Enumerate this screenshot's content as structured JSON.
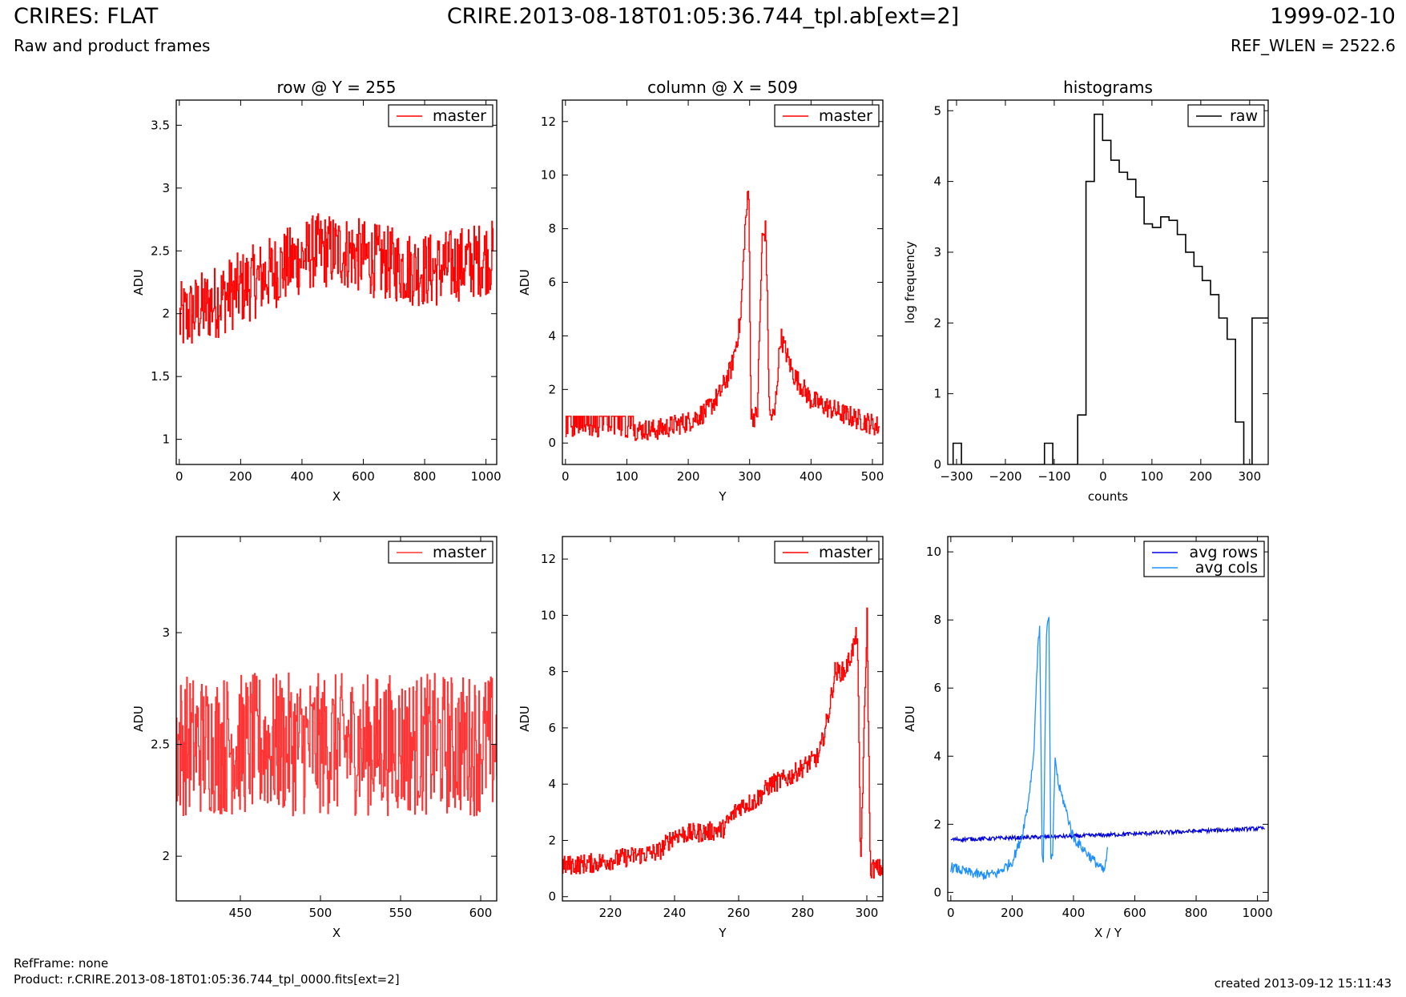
{
  "header": {
    "title": "CRIRES: FLAT",
    "subtitle": "Raw and product frames",
    "center": "CRIRE.2013-08-18T01:05:36.744_tpl.ab[ext=2]",
    "date": "1999-02-10",
    "ref_wlen": "REF_WLEN = 2522.6"
  },
  "footer": {
    "refframe": "RefFrame: none",
    "product": "Product: r.CRIRE.2013-08-18T01:05:36.744_tpl_0000.fits[ext=2]",
    "created": "created 2013-09-12 15:11:43"
  },
  "colors": {
    "master": "#ff0000",
    "raw": "#000000",
    "avg_rows": "#0000dd",
    "avg_cols": "#1e90ff"
  },
  "chart_data": [
    {
      "id": "row",
      "type": "line",
      "title": "row @ Y = 255",
      "xlabel": "X",
      "ylabel": "ADU",
      "xlim": [
        -10,
        1035
      ],
      "ylim": [
        0.8,
        3.7
      ],
      "xticks": [
        0,
        200,
        400,
        600,
        800,
        1000
      ],
      "yticks": [
        1.0,
        1.5,
        2.0,
        2.5,
        3.0,
        3.5
      ],
      "legend": "top-right",
      "series": [
        {
          "name": "master",
          "color": "#ff0000",
          "drawstyle": "steps",
          "x": [
            0,
            40,
            80,
            120,
            160,
            200,
            240,
            280,
            320,
            360,
            400,
            440,
            480,
            520,
            560,
            600,
            640,
            680,
            720,
            760,
            800,
            840,
            880,
            920,
            960,
            1000,
            1023
          ],
          "y": [
            1.95,
            2.0,
            2.05,
            2.1,
            2.15,
            2.2,
            2.25,
            2.3,
            2.35,
            2.4,
            2.45,
            2.5,
            2.5,
            2.5,
            2.48,
            2.45,
            2.42,
            2.4,
            2.38,
            2.36,
            2.35,
            2.35,
            2.38,
            2.4,
            2.42,
            2.45,
            2.45
          ],
          "noise": 0.3
        }
      ]
    },
    {
      "id": "col",
      "type": "line",
      "title": "column @ X = 509",
      "xlabel": "Y",
      "ylabel": "ADU",
      "xlim": [
        -5,
        517
      ],
      "ylim": [
        -0.8,
        12.8
      ],
      "xticks": [
        0,
        100,
        200,
        300,
        400,
        500
      ],
      "yticks": [
        0,
        2,
        4,
        6,
        8,
        10,
        12
      ],
      "legend": "top-right",
      "series": [
        {
          "name": "master",
          "color": "#ff0000",
          "drawstyle": "steps",
          "x": [
            0,
            50,
            100,
            150,
            200,
            230,
            250,
            270,
            285,
            292,
            298,
            302,
            312,
            320,
            326,
            332,
            340,
            350,
            370,
            400,
            450,
            500,
            511
          ],
          "y": [
            0.6,
            0.6,
            0.5,
            0.5,
            0.8,
            1.2,
            1.8,
            2.8,
            4.6,
            8.0,
            9.5,
            1.0,
            1.0,
            7.6,
            8.0,
            1.0,
            1.0,
            4.0,
            2.6,
            1.6,
            1.1,
            0.7,
            0.6
          ],
          "noise": 0.4
        }
      ]
    },
    {
      "id": "hist",
      "type": "bar",
      "title": "histograms",
      "xlabel": "counts",
      "ylabel": "log frequency",
      "xlim": [
        -318,
        338
      ],
      "ylim": [
        0,
        5.15
      ],
      "xticks": [
        -300,
        -200,
        -100,
        0,
        100,
        200,
        300
      ],
      "xticklabels": [
        "−300",
        "−200",
        "−100",
        "0",
        "100",
        "200",
        "300"
      ],
      "yticks": [
        0,
        1,
        2,
        3,
        4,
        5
      ],
      "legend": "top-right",
      "series": [
        {
          "name": "raw",
          "color": "#000000",
          "drawstyle": "steps",
          "bin_edges": [
            -307,
            -290,
            -273,
            -256,
            -239,
            -222,
            -205,
            -188,
            -171,
            -154,
            -137,
            -120,
            -103,
            -86,
            -69,
            -52,
            -35,
            -18,
            -1,
            16,
            33,
            50,
            67,
            84,
            101,
            118,
            135,
            152,
            169,
            186,
            203,
            220,
            237,
            254,
            271,
            288,
            305,
            322,
            339
          ],
          "counts": [
            0.3,
            0,
            0,
            0,
            0,
            0,
            0,
            0,
            0,
            0,
            0,
            0.3,
            0,
            0,
            0,
            0.7,
            4.0,
            4.95,
            4.58,
            4.3,
            4.13,
            4.03,
            3.78,
            3.4,
            3.35,
            3.5,
            3.45,
            3.25,
            3.0,
            2.8,
            2.6,
            2.4,
            2.07,
            1.77,
            0.6,
            0,
            2.07,
            2.07
          ]
        }
      ]
    },
    {
      "id": "rowzoom",
      "type": "line",
      "title": "",
      "xlabel": "X",
      "ylabel": "ADU",
      "xlim": [
        410,
        610
      ],
      "ylim": [
        1.8,
        3.43
      ],
      "xticks": [
        450,
        500,
        550,
        600
      ],
      "yticks": [
        2.0,
        2.5,
        3.0
      ],
      "legend": "top-right",
      "series": [
        {
          "name": "master",
          "color": "#ff3333",
          "drawstyle": "steps",
          "x": [
            410,
            610
          ],
          "y": [
            2.5,
            2.5
          ],
          "noise": 0.32
        }
      ]
    },
    {
      "id": "colzoom",
      "type": "line",
      "title": "",
      "xlabel": "Y",
      "ylabel": "ADU",
      "xlim": [
        205,
        305
      ],
      "ylim": [
        -0.15,
        12.8
      ],
      "xticks": [
        220,
        240,
        260,
        280,
        300
      ],
      "yticks": [
        0,
        2,
        4,
        6,
        8,
        10,
        12
      ],
      "legend": "top-right",
      "series": [
        {
          "name": "master",
          "color": "#ff0000",
          "drawstyle": "steps",
          "x": [
            205,
            215,
            225,
            235,
            240,
            250,
            255,
            260,
            265,
            270,
            275,
            280,
            285,
            288,
            290,
            293,
            295,
            297,
            298,
            300,
            301,
            305
          ],
          "y": [
            1.1,
            1.2,
            1.4,
            1.6,
            2.2,
            2.3,
            2.4,
            3.2,
            3.4,
            4.0,
            4.2,
            4.6,
            5.0,
            6.5,
            8.0,
            8.0,
            8.6,
            9.4,
            1.0,
            10.0,
            1.0,
            1.0
          ],
          "noise": 0.35
        }
      ]
    },
    {
      "id": "avg",
      "type": "line",
      "title": "",
      "xlabel": "X / Y",
      "ylabel": "ADU",
      "xlim": [
        -10,
        1035
      ],
      "ylim": [
        -0.25,
        10.45
      ],
      "xticks": [
        0,
        200,
        400,
        600,
        800,
        1000
      ],
      "yticks": [
        0,
        2,
        4,
        6,
        8,
        10
      ],
      "legend": "top-right",
      "series": [
        {
          "name": "avg rows",
          "color": "#0000dd",
          "drawstyle": "line",
          "x": [
            0,
            200,
            400,
            600,
            800,
            1023
          ],
          "y": [
            1.55,
            1.6,
            1.65,
            1.72,
            1.8,
            1.88
          ],
          "noise": 0.06
        },
        {
          "name": "avg cols",
          "color": "#1e90ff",
          "drawstyle": "line",
          "x": [
            0,
            50,
            100,
            150,
            200,
            230,
            250,
            270,
            285,
            290,
            298,
            302,
            312,
            320,
            326,
            332,
            340,
            350,
            370,
            400,
            450,
            500,
            511
          ],
          "y": [
            0.75,
            0.6,
            0.5,
            0.55,
            0.9,
            1.6,
            2.5,
            4.0,
            7.5,
            7.7,
            1.0,
            1.0,
            7.6,
            8.1,
            1.0,
            1.0,
            4.0,
            3.2,
            2.6,
            1.6,
            1.1,
            0.6,
            1.2
          ],
          "noise": 0.15
        }
      ]
    }
  ]
}
